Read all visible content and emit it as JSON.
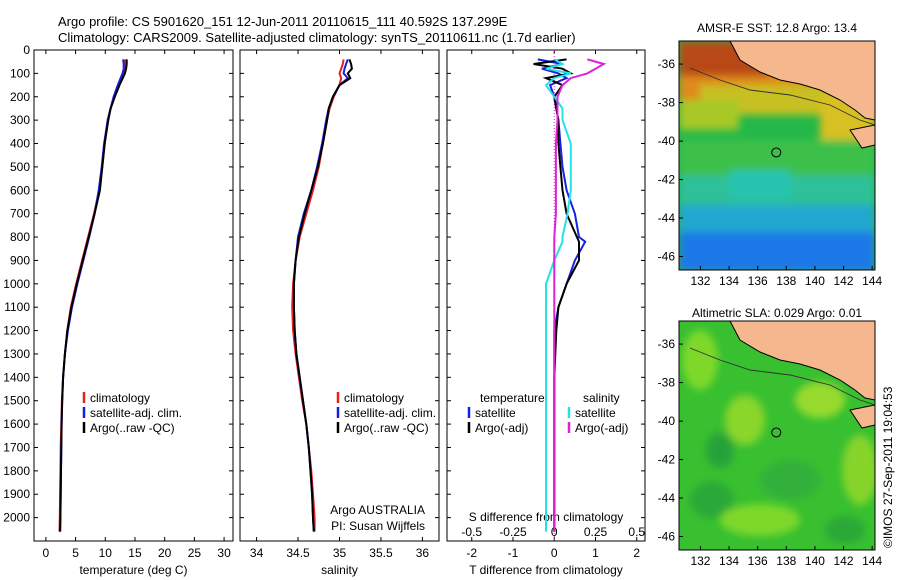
{
  "header": {
    "line1": "Argo profile: CS 5901620_151 12-Jun-2011 20110615_111 40.592S 137.299E",
    "line2": "Climatology: CARS2009. Satellite-adjusted climatology: synTS_20110611.nc (1.7d earlier)"
  },
  "credit": "©IMOS 27-Sep-2011 19:04:53",
  "colors": {
    "climatology": "#e8201e",
    "satellite": "#1520e0",
    "argo": "#000000",
    "salinity_sat": "#22e2e8",
    "salinity_argo": "#e020d8",
    "land": "#f6b998"
  },
  "chart_data": [
    {
      "type": "line",
      "name": "temperature",
      "xlabel": "temperature (deg C)",
      "ylabel": "",
      "xlim": [
        -2,
        31.5
      ],
      "ylim": [
        2100,
        0
      ],
      "xticks": [
        0,
        5,
        10,
        15,
        20,
        25,
        30
      ],
      "yticks": [
        0,
        100,
        200,
        300,
        400,
        500,
        600,
        700,
        800,
        900,
        1000,
        1100,
        1200,
        1300,
        1400,
        1500,
        1600,
        1700,
        1800,
        1900,
        2000
      ],
      "legend": [
        "climatology",
        "satellite-adj. clim.",
        "Argo(..raw -QC)"
      ],
      "legend_position": "lower-center",
      "depth": [
        40,
        60,
        80,
        100,
        150,
        200,
        250,
        300,
        400,
        500,
        600,
        700,
        800,
        900,
        1000,
        1100,
        1200,
        1300,
        1400,
        1500,
        1600,
        1700,
        1800,
        1900,
        2000,
        2060
      ],
      "series": [
        {
          "name": "climatology",
          "values": [
            13.3,
            13.3,
            13.2,
            13.0,
            12.2,
            11.5,
            10.9,
            10.4,
            9.9,
            9.5,
            9.0,
            8.1,
            7.1,
            6.1,
            5.1,
            4.2,
            3.6,
            3.2,
            2.9,
            2.7,
            2.6,
            2.5,
            2.45,
            2.4,
            2.35,
            2.3
          ]
        },
        {
          "name": "satellite-adj. clim.",
          "values": [
            13.0,
            13.1,
            13.1,
            12.9,
            12.1,
            11.4,
            10.9,
            10.4,
            9.8,
            9.4,
            8.9,
            8.2,
            7.3,
            6.3,
            5.3,
            4.4,
            3.7,
            3.2,
            2.9,
            2.75,
            2.65,
            2.6,
            2.55,
            2.5,
            2.45,
            2.4
          ]
        },
        {
          "name": "Argo(..raw -QC)",
          "values": [
            13.6,
            13.6,
            13.5,
            13.3,
            12.4,
            11.6,
            10.9,
            10.5,
            9.9,
            9.5,
            9.1,
            8.2,
            7.2,
            6.2,
            5.2,
            4.3,
            3.6,
            3.2,
            2.9,
            2.75,
            2.65,
            2.6,
            2.55,
            2.5,
            2.45,
            2.4
          ]
        }
      ]
    },
    {
      "type": "line",
      "name": "salinity",
      "xlabel": "salinity",
      "ylabel": "",
      "xlim": [
        33.8,
        36.2
      ],
      "ylim": [
        2100,
        0
      ],
      "xticks": [
        34,
        34.5,
        35,
        35.5,
        36
      ],
      "legend": [
        "climatology",
        "satellite-adj. clim.",
        "Argo(..raw -QC)"
      ],
      "legend_position": "lower-right",
      "annotation": {
        "line1": "Argo AUSTRALIA",
        "line2": "PI: Susan Wijffels"
      },
      "depth": [
        40,
        60,
        80,
        100,
        120,
        150,
        200,
        250,
        300,
        400,
        500,
        600,
        700,
        800,
        900,
        1000,
        1100,
        1200,
        1300,
        1400,
        1500,
        1600,
        1700,
        1800,
        1900,
        2000,
        2060
      ],
      "series": [
        {
          "name": "climatology",
          "values": [
            35.05,
            35.04,
            35.02,
            35.0,
            35.02,
            35.0,
            34.93,
            34.88,
            34.85,
            34.8,
            34.75,
            34.68,
            34.6,
            34.52,
            34.47,
            34.44,
            34.43,
            34.44,
            34.47,
            34.51,
            34.55,
            34.6,
            34.63,
            34.66,
            34.68,
            34.7,
            34.7
          ]
        },
        {
          "name": "satellite-adj. clim.",
          "values": [
            35.1,
            35.08,
            35.06,
            35.05,
            35.1,
            35.0,
            34.92,
            34.87,
            34.84,
            34.79,
            34.73,
            34.66,
            34.57,
            34.5,
            34.47,
            34.45,
            34.45,
            34.46,
            34.48,
            34.52,
            34.56,
            34.6,
            34.63,
            34.65,
            34.67,
            34.68,
            34.69
          ]
        },
        {
          "name": "Argo(..raw -QC)",
          "values": [
            35.12,
            35.14,
            35.15,
            35.1,
            35.13,
            35.0,
            34.92,
            34.87,
            34.85,
            34.8,
            34.74,
            34.66,
            34.58,
            34.51,
            34.47,
            34.45,
            34.45,
            34.46,
            34.48,
            34.52,
            34.56,
            34.6,
            34.63,
            34.65,
            34.67,
            34.68,
            34.69
          ]
        }
      ]
    },
    {
      "type": "line",
      "name": "difference",
      "xlabel": "T difference from climatology",
      "xlabel_top": "S difference from climatology",
      "ylabel": "",
      "xlim": [
        -2.6,
        2.2
      ],
      "ylim": [
        2100,
        0
      ],
      "xticks": [
        -2,
        -1,
        0,
        1,
        2
      ],
      "xtick_labels": [
        "-2",
        "-1",
        "0",
        "1",
        "2"
      ],
      "s_ticks": [
        -0.5,
        -0.25,
        0,
        0.25,
        0.5
      ],
      "s_tick_labels": [
        "-0.5",
        "-0.25",
        "0",
        "0.25",
        "0.5"
      ],
      "legend_left_title": "temperature",
      "legend_right_title": "salinity",
      "legend": [
        "satellite",
        "Argo(-adj)",
        "satellite",
        "Argo(-adj)"
      ],
      "legend_position": "lower-center",
      "depth": [
        40,
        60,
        80,
        100,
        120,
        150,
        200,
        250,
        300,
        400,
        500,
        600,
        700,
        800,
        820,
        900,
        1000,
        1100,
        1200,
        1400,
        1600,
        1800,
        2000,
        2060
      ],
      "series": [
        {
          "name": "T satellite",
          "values": [
            -0.4,
            0.2,
            -0.3,
            0.1,
            0.3,
            -0.1,
            0.0,
            0.05,
            0.1,
            0.15,
            0.2,
            0.3,
            0.5,
            0.6,
            0.75,
            0.5,
            0.3,
            0.1,
            0.0,
            0.0,
            0.0,
            0.0,
            0.0,
            0.0
          ]
        },
        {
          "name": "T Argo(-adj)",
          "values": [
            0.3,
            -0.5,
            0.2,
            0.4,
            -0.2,
            0.2,
            0.0,
            0.05,
            0.1,
            0.1,
            0.15,
            0.2,
            0.3,
            0.55,
            0.6,
            0.6,
            0.3,
            0.1,
            0.05,
            0.0,
            0.0,
            0.0,
            0.0,
            0.0
          ]
        },
        {
          "name": "S satellite",
          "values": [
            0.0,
            0.05,
            -0.05,
            0.1,
            0.0,
            -0.05,
            0.0,
            0.05,
            0.05,
            0.1,
            0.1,
            0.1,
            0.08,
            0.05,
            0.05,
            0.0,
            -0.05,
            -0.05,
            -0.05,
            -0.05,
            -0.05,
            -0.05,
            -0.05,
            -0.05
          ]
        },
        {
          "name": "S Argo(-adj)",
          "values": [
            0.2,
            0.3,
            0.25,
            0.2,
            0.1,
            0.05,
            0.02,
            0.02,
            0.02,
            0.01,
            0.01,
            0.01,
            0.01,
            0.0,
            0.0,
            0.0,
            0.0,
            0.0,
            0.0,
            0.0,
            0.0,
            0.0,
            0.0,
            0.0
          ]
        }
      ]
    },
    {
      "type": "heatmap",
      "name": "sst-map",
      "title": "AMSR-E SST: 12.8 Argo: 13.4",
      "xlim": [
        130.5,
        144.2
      ],
      "ylim": [
        -46.7,
        -34.8
      ],
      "xticks": [
        132,
        134,
        136,
        138,
        140,
        142,
        144
      ],
      "yticks": [
        -36,
        -38,
        -40,
        -42,
        -44,
        -46
      ],
      "marker": {
        "lon": 137.299,
        "lat": -40.592
      }
    },
    {
      "type": "heatmap",
      "name": "sla-map",
      "title": "Altimetric SLA: 0.029 Argo: 0.01",
      "xlim": [
        130.5,
        144.2
      ],
      "ylim": [
        -46.7,
        -34.8
      ],
      "xticks": [
        132,
        134,
        136,
        138,
        140,
        142,
        144
      ],
      "yticks": [
        -36,
        -38,
        -40,
        -42,
        -44,
        -46
      ],
      "marker": {
        "lon": 137.299,
        "lat": -40.592
      }
    }
  ]
}
